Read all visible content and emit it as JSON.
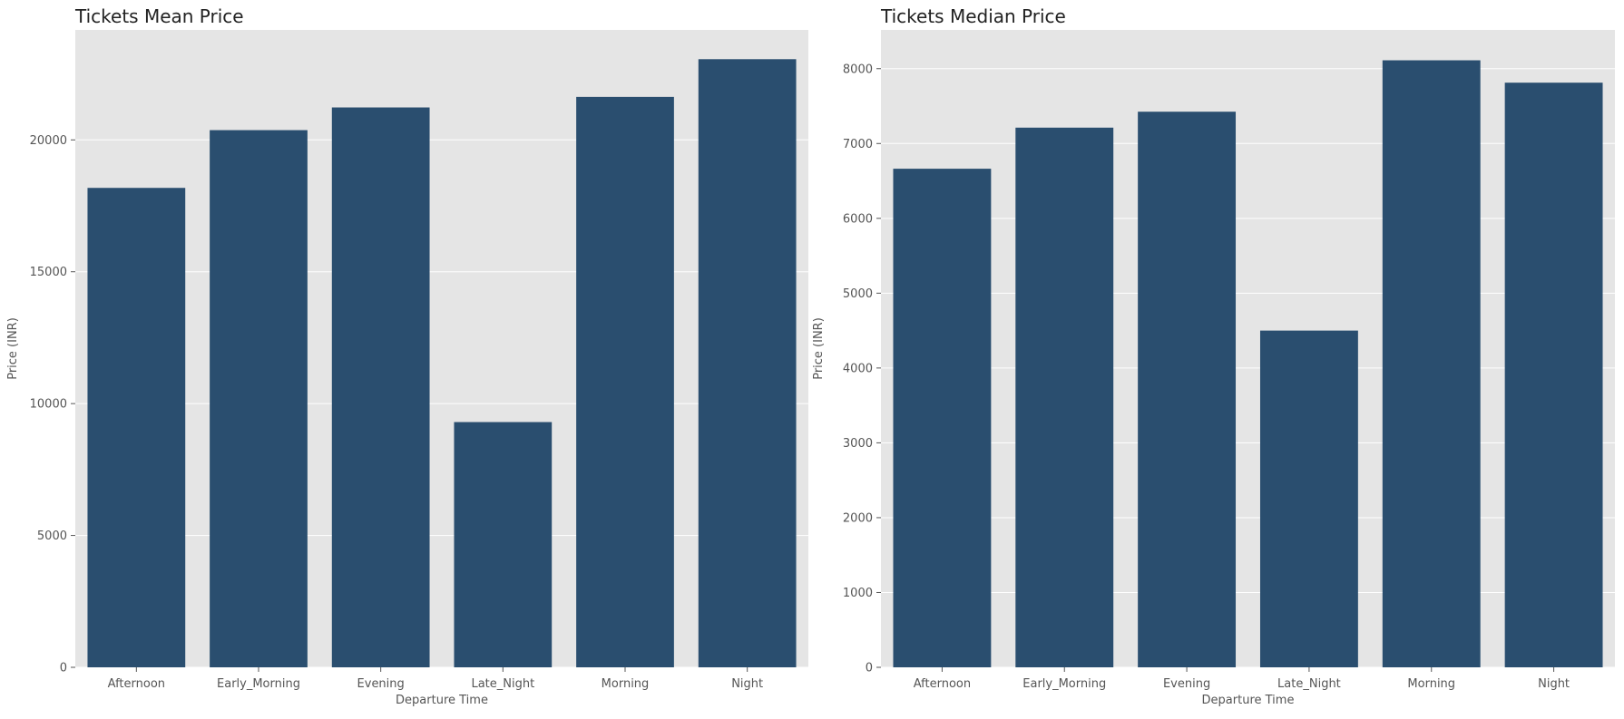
{
  "colors": {
    "panel_bg": "#e5e5e5",
    "grid": "#ffffff",
    "bar": "#2a4e6f",
    "text": "#555555",
    "title": "#222222"
  },
  "chart_data": [
    {
      "type": "bar",
      "title": "Tickets Mean Price",
      "xlabel": "Departure Time",
      "ylabel": "Price (INR)",
      "categories": [
        "Afternoon",
        "Early_Morning",
        "Evening",
        "Late_Night",
        "Morning",
        "Night"
      ],
      "values": [
        18180,
        20370,
        21230,
        9300,
        21630,
        23060
      ],
      "ylim": [
        0,
        24170
      ],
      "yticks": [
        0,
        5000,
        10000,
        15000,
        20000
      ],
      "grid": true,
      "legend": "none"
    },
    {
      "type": "bar",
      "title": "Tickets Median Price",
      "xlabel": "Departure Time",
      "ylabel": "Price (INR)",
      "categories": [
        "Afternoon",
        "Early_Morning",
        "Evening",
        "Late_Night",
        "Morning",
        "Night"
      ],
      "values": [
        6663,
        7212,
        7425,
        4500,
        8112,
        7813
      ],
      "ylim": [
        0,
        8518
      ],
      "yticks": [
        0,
        1000,
        2000,
        3000,
        4000,
        5000,
        6000,
        7000,
        8000
      ],
      "grid": true,
      "legend": "none"
    }
  ]
}
